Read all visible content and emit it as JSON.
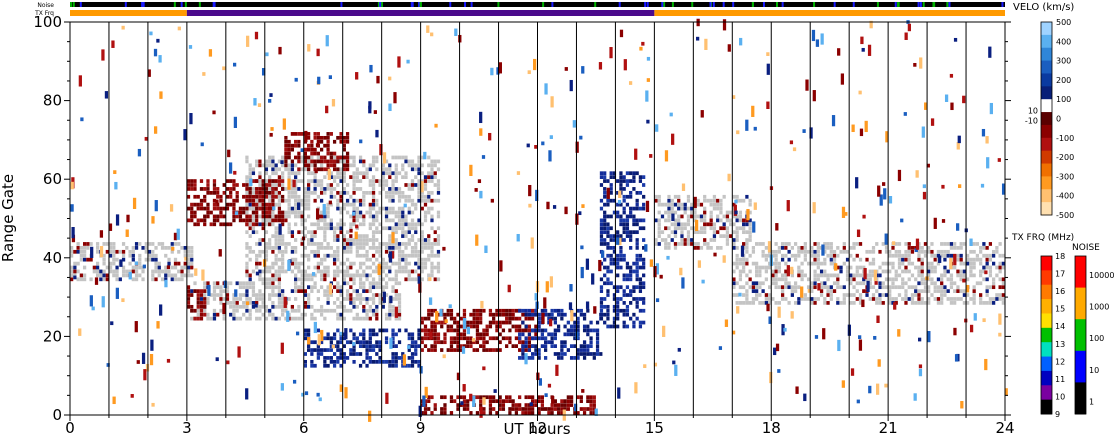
{
  "chart_data": {
    "type": "heatmap",
    "xlabel": "UT hours",
    "ylabel": "Range Gate",
    "xlim": [
      0,
      24
    ],
    "ylim": [
      0,
      100
    ],
    "x_ticks": [
      0,
      3,
      6,
      9,
      12,
      15,
      18,
      21,
      24
    ],
    "y_ticks": [
      0,
      20,
      40,
      60,
      80,
      100
    ],
    "vertical_hour_lines": [
      1,
      2,
      3,
      4,
      5,
      6,
      7,
      8,
      9,
      10,
      11,
      12,
      13,
      14,
      15,
      16,
      17,
      18,
      19,
      20,
      21,
      22,
      23
    ],
    "top_strips": {
      "noise_label": "Noise",
      "txfrq_label": "TX Frq",
      "tx_segments": [
        {
          "start": 0,
          "end": 3,
          "color": "#ff9a00"
        },
        {
          "start": 3,
          "end": 15,
          "color": "#4b0a8c"
        },
        {
          "start": 15,
          "end": 24,
          "color": "#ff9a00"
        }
      ]
    },
    "ground_scatter_color": "#c4c4c4",
    "regions": [
      {
        "kind": "ground",
        "x": [
          0,
          3.2
        ],
        "y": [
          34,
          44
        ]
      },
      {
        "kind": "ground",
        "x": [
          3.0,
          8.5
        ],
        "y": [
          24,
          34
        ]
      },
      {
        "kind": "ground",
        "x": [
          4.5,
          9.5
        ],
        "y": [
          34,
          66
        ]
      },
      {
        "kind": "ground",
        "x": [
          15.0,
          17.5
        ],
        "y": [
          42,
          56
        ]
      },
      {
        "kind": "ground",
        "x": [
          17.0,
          24.0
        ],
        "y": [
          28,
          44
        ]
      },
      {
        "kind": "negative",
        "x": [
          3.0,
          5.5
        ],
        "y": [
          48,
          60
        ]
      },
      {
        "kind": "negative",
        "x": [
          5.5,
          7.2
        ],
        "y": [
          62,
          72
        ]
      },
      {
        "kind": "negative",
        "x": [
          3.0,
          3.5
        ],
        "y": [
          24,
          32
        ]
      },
      {
        "kind": "positive",
        "x": [
          6.0,
          9.0
        ],
        "y": [
          12,
          22
        ]
      },
      {
        "kind": "negative",
        "x": [
          9.0,
          12.0
        ],
        "y": [
          16,
          27
        ]
      },
      {
        "kind": "positive",
        "x": [
          11.5,
          13.7
        ],
        "y": [
          14,
          27
        ]
      },
      {
        "kind": "positive",
        "x": [
          13.6,
          14.8
        ],
        "y": [
          22,
          62
        ]
      },
      {
        "kind": "negative",
        "x": [
          9.0,
          13.5
        ],
        "y": [
          0,
          5
        ]
      }
    ],
    "velo_scale": {
      "title": "VELO (km/s)",
      "ticks": [
        500,
        400,
        300,
        200,
        100,
        0,
        -100,
        -200,
        -300,
        -400,
        -500
      ],
      "side_ticks": [
        "10",
        "-10"
      ],
      "colors": [
        "#9fd3ff",
        "#5ab0f0",
        "#2f86d8",
        "#1a5ec0",
        "#0a3aa0",
        "#081f78",
        "#ffffff",
        "#5a0000",
        "#8b0000",
        "#b01010",
        "#d03a00",
        "#f07000",
        "#ff9a20",
        "#ffc070",
        "#ffe0b0"
      ]
    },
    "txfrq_scale": {
      "title": "TX FRQ (MHz)",
      "ticks": [
        "18",
        "17",
        "16",
        "15",
        "14",
        "13",
        "12",
        "11",
        "10",
        "9"
      ],
      "colors": [
        "#ff0000",
        "#ff3a00",
        "#ff7a00",
        "#ffb000",
        "#ffe000",
        "#00c000",
        "#00e0c0",
        "#0060ff",
        "#0000c0",
        "#7a00a0",
        "#000000"
      ]
    },
    "noise_scale": {
      "title": "NOISE",
      "ticks": [
        "10000",
        "1000",
        "100",
        "10",
        "1"
      ],
      "colors": [
        "#ff0000",
        "#ffaa00",
        "#00c000",
        "#0000ff",
        "#000000"
      ]
    }
  }
}
